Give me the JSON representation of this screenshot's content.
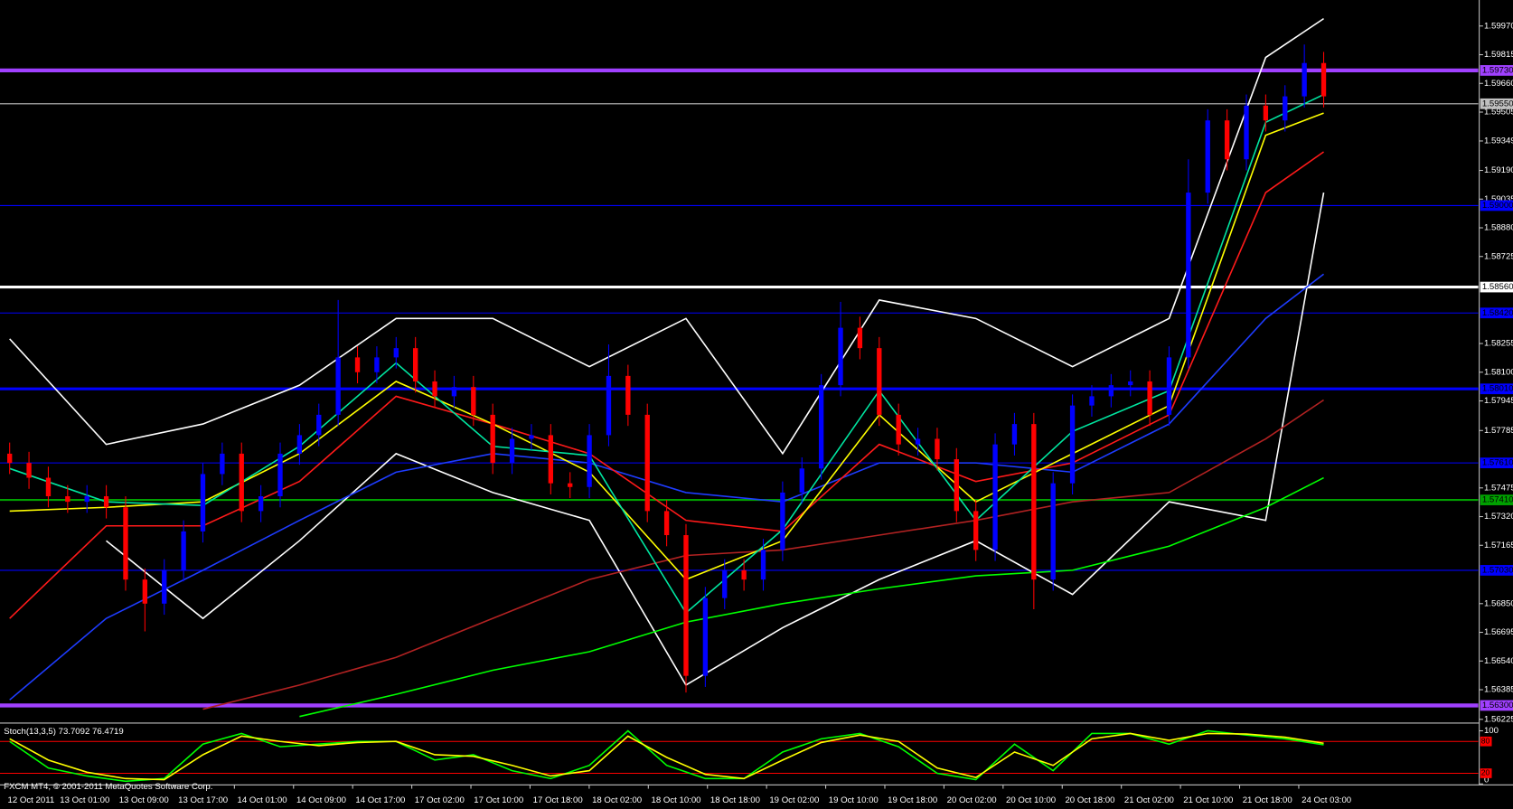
{
  "chart_data": {
    "type": "candlestick",
    "credit": "FXCM MT4, © 2001-2011 MetaQuotes Software Corp.",
    "up_color": "#0000ff",
    "down_color": "#ff0000",
    "ylim": [
      1.5621,
      1.601
    ],
    "yticks": [
      {
        "value": 1.5997,
        "label": "1.59970"
      },
      1.59815,
      {
        "value": 1.5966,
        "label": "1.59660"
      },
      1.59505,
      1.59349,
      {
        "value": 1.5919,
        "label": "1.59190"
      },
      1.59035,
      {
        "value": 1.5888,
        "label": "1.58880"
      },
      1.58725,
      1.58255,
      {
        "value": 1.581,
        "label": "1.58100"
      },
      1.57945,
      1.57785,
      1.57475,
      {
        "value": 1.5732,
        "label": "1.57320"
      },
      1.57165,
      {
        "value": 1.5685,
        "label": "1.56850"
      },
      1.56695,
      {
        "value": 1.5654,
        "label": "1.56540"
      },
      1.56385,
      1.56225
    ],
    "xlim": [
      -0.5,
      76
    ],
    "xticks": [
      {
        "value": -0.25,
        "label": "12 Oct 2011"
      },
      {
        "value": 2.45,
        "label": "13 Oct 01:00"
      },
      {
        "value": 5.51,
        "label": "13 Oct 09:00"
      },
      {
        "value": 8.57,
        "label": "13 Oct 17:00"
      },
      {
        "value": 11.63,
        "label": "14 Oct 01:00"
      },
      {
        "value": 14.69,
        "label": "14 Oct 09:00"
      },
      {
        "value": 17.75,
        "label": "14 Oct 17:00"
      },
      {
        "value": 20.81,
        "label": "17 Oct 02:00"
      },
      {
        "value": 23.87,
        "label": "17 Oct 10:00"
      },
      {
        "value": 26.93,
        "label": "17 Oct 18:00"
      },
      {
        "value": 29.99,
        "label": "18 Oct 02:00"
      },
      {
        "value": 33.05,
        "label": "18 Oct 10:00"
      },
      {
        "value": 36.11,
        "label": "18 Oct 18:00"
      },
      {
        "value": 39.17,
        "label": "19 Oct 02:00"
      },
      {
        "value": 42.23,
        "label": "19 Oct 10:00"
      },
      {
        "value": 45.29,
        "label": "19 Oct 18:00"
      },
      {
        "value": 48.35,
        "label": "20 Oct 02:00"
      },
      {
        "value": 51.41,
        "label": "20 Oct 10:00"
      },
      {
        "value": 54.47,
        "label": "20 Oct 18:00"
      },
      {
        "value": 57.53,
        "label": "21 Oct 02:00"
      },
      {
        "value": 60.59,
        "label": "21 Oct 10:00"
      },
      {
        "value": 63.65,
        "label": "21 Oct 18:00"
      },
      {
        "value": 66.71,
        "label": "24 Oct 03:00"
      }
    ],
    "open": [
      1.5766,
      1.5761,
      1.5753,
      1.5743,
      1.574,
      1.5743,
      1.5737,
      1.5698,
      1.5685,
      1.5703,
      1.5724,
      1.5755,
      1.5766,
      1.5735,
      1.5743,
      1.5766,
      1.5776,
      1.5787,
      1.5818,
      1.581,
      1.5818,
      1.5823,
      1.5805,
      1.5797,
      1.5802,
      1.5787,
      1.5761,
      1.5774,
      1.5776,
      1.575,
      1.5748,
      1.5776,
      1.5808,
      1.5787,
      1.5735,
      1.5722,
      1.5646,
      1.5688,
      1.5703,
      1.5698,
      1.5714,
      1.5745,
      1.5758,
      1.5803,
      1.5834,
      1.5823,
      1.5787,
      1.5771,
      1.5774,
      1.5763,
      1.5735,
      1.5714,
      1.5771,
      1.5782,
      1.5698,
      1.575,
      1.5792,
      1.5797,
      1.5803,
      1.5805,
      1.5787,
      1.5818,
      1.5907,
      1.5946,
      1.5925,
      1.5954,
      1.5946,
      1.5959,
      1.5977
    ],
    "high": [
      1.5772,
      1.5767,
      1.5759,
      1.5749,
      1.5749,
      1.5749,
      1.5743,
      1.5704,
      1.5709,
      1.573,
      1.5761,
      1.5772,
      1.5772,
      1.5749,
      1.5772,
      1.5782,
      1.5793,
      1.5849,
      1.5824,
      1.5824,
      1.5829,
      1.5829,
      1.5811,
      1.5808,
      1.5808,
      1.5793,
      1.578,
      1.5782,
      1.5782,
      1.5756,
      1.5782,
      1.5825,
      1.5814,
      1.5793,
      1.5741,
      1.5728,
      1.5694,
      1.5709,
      1.5709,
      1.572,
      1.5751,
      1.5764,
      1.5809,
      1.5848,
      1.584,
      1.5829,
      1.5793,
      1.578,
      1.578,
      1.5769,
      1.5741,
      1.5777,
      1.5788,
      1.5788,
      1.5756,
      1.5798,
      1.5803,
      1.5809,
      1.5811,
      1.5811,
      1.5824,
      1.5925,
      1.5952,
      1.5952,
      1.596,
      1.596,
      1.5965,
      1.5987,
      1.5983
    ],
    "low": [
      1.5755,
      1.5747,
      1.5737,
      1.5734,
      1.5734,
      1.5731,
      1.5692,
      1.567,
      1.5679,
      1.5697,
      1.5718,
      1.5749,
      1.5729,
      1.5729,
      1.5737,
      1.576,
      1.577,
      1.5781,
      1.5804,
      1.5804,
      1.5812,
      1.5799,
      1.5791,
      1.5791,
      1.5781,
      1.5755,
      1.5755,
      1.5768,
      1.5744,
      1.5742,
      1.5742,
      1.577,
      1.5781,
      1.5729,
      1.5716,
      1.5637,
      1.564,
      1.5682,
      1.5692,
      1.5692,
      1.5708,
      1.5739,
      1.5752,
      1.5797,
      1.5817,
      1.5781,
      1.5765,
      1.5765,
      1.5757,
      1.5729,
      1.5708,
      1.5708,
      1.5765,
      1.5682,
      1.5692,
      1.5744,
      1.5786,
      1.5791,
      1.5797,
      1.5781,
      1.5781,
      1.5812,
      1.5901,
      1.5919,
      1.5919,
      1.594,
      1.594,
      1.5953,
      1.5953
    ],
    "close": [
      1.5761,
      1.5753,
      1.5743,
      1.574,
      1.5743,
      1.5737,
      1.5698,
      1.5685,
      1.5703,
      1.5724,
      1.5755,
      1.5766,
      1.5735,
      1.5743,
      1.5766,
      1.5776,
      1.5787,
      1.5818,
      1.581,
      1.5818,
      1.5823,
      1.5805,
      1.5797,
      1.5802,
      1.5787,
      1.5761,
      1.5774,
      1.5776,
      1.575,
      1.5748,
      1.5776,
      1.5808,
      1.5787,
      1.5735,
      1.5722,
      1.5646,
      1.5688,
      1.5703,
      1.5698,
      1.5714,
      1.5745,
      1.5758,
      1.5803,
      1.5834,
      1.5823,
      1.5787,
      1.5771,
      1.5774,
      1.5763,
      1.5735,
      1.5714,
      1.5771,
      1.5782,
      1.5698,
      1.575,
      1.5792,
      1.5797,
      1.5803,
      1.5805,
      1.5787,
      1.5818,
      1.5907,
      1.5946,
      1.5925,
      1.5954,
      1.5946,
      1.5959,
      1.5977,
      1.5959
    ],
    "overlay_x": [
      0,
      5,
      10,
      15,
      20,
      25,
      30,
      35,
      40,
      45,
      50,
      55,
      60,
      65,
      68
    ],
    "overlays": [
      {
        "color": "#ffffff",
        "values": [
          1.5828,
          1.5771,
          1.5782,
          1.5803,
          1.5839,
          1.5839,
          1.5813,
          1.5839,
          1.5766,
          1.5849,
          1.5839,
          1.5813,
          1.5839,
          1.598,
          1.6001
        ]
      },
      {
        "color": "#ffffff",
        "values": [
          null,
          1.5719,
          1.5677,
          1.5719,
          1.5766,
          1.5745,
          1.573,
          1.5641,
          1.5672,
          1.5698,
          1.5719,
          1.569,
          1.574,
          1.573,
          1.5907
        ]
      },
      {
        "color": "#00ff00",
        "values": [
          null,
          null,
          null,
          1.5624,
          1.5636,
          1.5649,
          1.5659,
          1.5675,
          1.5685,
          1.5693,
          1.57,
          1.5703,
          1.5716,
          1.5737,
          1.5753
        ]
      },
      {
        "color": "#b22222",
        "values": [
          null,
          null,
          1.5628,
          1.5641,
          1.5656,
          1.5677,
          1.5698,
          1.5711,
          1.5714,
          1.5722,
          1.573,
          1.574,
          1.5745,
          1.5774,
          1.5795
        ]
      },
      {
        "color": "#1e3cff",
        "values": [
          1.5633,
          1.5677,
          1.5703,
          1.573,
          1.5756,
          1.5766,
          1.5761,
          1.5745,
          1.574,
          1.5761,
          1.5761,
          1.5756,
          1.5782,
          1.5839,
          1.5863
        ]
      },
      {
        "color": "#ff1a1a",
        "values": [
          1.5677,
          1.5727,
          1.5727,
          1.5751,
          1.5797,
          1.5782,
          1.5766,
          1.573,
          1.5724,
          1.5771,
          1.5751,
          1.5761,
          1.5787,
          1.5907,
          1.5929
        ]
      },
      {
        "color": "#ffff00",
        "values": [
          1.5735,
          1.5737,
          1.574,
          1.5766,
          1.5805,
          1.5782,
          1.5756,
          1.5698,
          1.5719,
          1.5787,
          1.574,
          1.5766,
          1.5792,
          1.5938,
          1.595
        ]
      },
      {
        "color": "#00e5a0",
        "values": [
          1.5758,
          1.574,
          1.5738,
          1.577,
          1.5815,
          1.577,
          1.5765,
          1.568,
          1.5725,
          1.58,
          1.573,
          1.5778,
          1.58,
          1.5945,
          1.596
        ]
      }
    ],
    "hlines": [
      {
        "value": 1.5973,
        "label": "1.59730",
        "color": "#a040ff",
        "width": 4
      },
      {
        "value": 1.5955,
        "label": "1.59550",
        "color": "#c0c0c0",
        "width": 1
      },
      {
        "value": 1.59,
        "label": "1.59000",
        "color": "#0000ff",
        "width": 1
      },
      {
        "value": 1.5856,
        "label": "1.58560",
        "color": "#ffffff",
        "width": 3
      },
      {
        "value": 1.5842,
        "label": "1.58420",
        "color": "#0000ff",
        "width": 1
      },
      {
        "value": 1.5801,
        "label": "1.58010",
        "color": "#0000ff",
        "width": 3
      },
      {
        "value": 1.5761,
        "label": "1.57610",
        "color": "#0000ff",
        "width": 1
      },
      {
        "value": 1.5741,
        "label": "1.57410",
        "color": "#00a000",
        "width": 2
      },
      {
        "value": 1.5703,
        "label": "1.57030",
        "color": "#0000ff",
        "width": 1
      },
      {
        "value": 1.563,
        "label": "1.56300",
        "color": "#a040ff",
        "width": 4
      }
    ],
    "stoch": {
      "title": "Stoch(13,3,5) 73.7092 76.4719",
      "ylim": [
        0,
        100
      ],
      "yticks": [
        100,
        0
      ],
      "levels": [
        80,
        20
      ],
      "level_color": "#ff0000",
      "x": [
        0,
        2,
        4,
        6,
        8,
        10,
        12,
        14,
        16,
        18,
        20,
        22,
        24,
        26,
        28,
        30,
        32,
        34,
        36,
        38,
        40,
        42,
        44,
        46,
        48,
        50,
        52,
        54,
        56,
        58,
        60,
        62,
        64,
        66,
        68
      ],
      "series": [
        {
          "color": "#00ff00",
          "values": [
            80,
            30,
            15,
            5,
            10,
            75,
            95,
            70,
            75,
            80,
            80,
            45,
            55,
            25,
            10,
            35,
            100,
            35,
            10,
            10,
            60,
            85,
            95,
            70,
            20,
            8,
            75,
            25,
            95,
            95,
            75,
            100,
            92,
            85,
            73.7092
          ]
        },
        {
          "color": "#ffff00",
          "values": [
            85,
            45,
            22,
            10,
            8,
            55,
            90,
            80,
            72,
            78,
            80,
            55,
            52,
            35,
            15,
            25,
            90,
            50,
            18,
            10,
            45,
            78,
            92,
            80,
            30,
            12,
            60,
            35,
            85,
            95,
            82,
            95,
            94,
            88,
            76.4719
          ]
        }
      ]
    }
  }
}
